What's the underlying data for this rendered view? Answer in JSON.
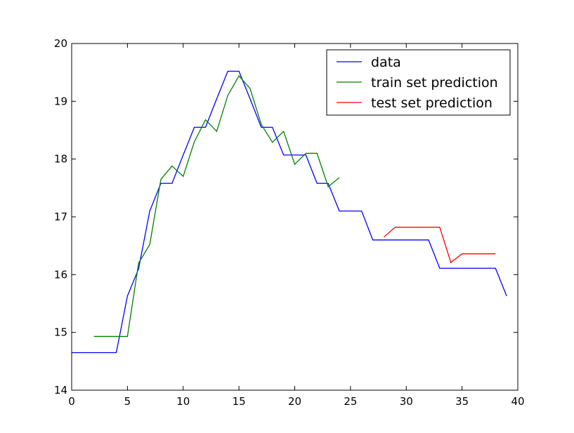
{
  "chart_data": {
    "type": "line",
    "xlim": [
      0,
      40
    ],
    "ylim": [
      14,
      20
    ],
    "x_ticks": [
      0,
      5,
      10,
      15,
      20,
      25,
      30,
      35,
      40
    ],
    "y_ticks": [
      14,
      15,
      16,
      17,
      18,
      19,
      20
    ],
    "grid": false,
    "legend_position": "top-right",
    "series": [
      {
        "name": "data",
        "color": "#0000ff",
        "x": [
          0,
          1,
          2,
          3,
          4,
          5,
          6,
          7,
          8,
          9,
          10,
          11,
          12,
          13,
          14,
          15,
          16,
          17,
          18,
          19,
          20,
          21,
          22,
          23,
          24,
          25,
          26,
          27,
          28,
          29,
          30,
          31,
          32,
          33,
          34,
          35,
          36,
          37,
          38,
          39
        ],
        "y": [
          14.65,
          14.65,
          14.65,
          14.65,
          14.65,
          15.63,
          16.1,
          17.1,
          17.58,
          17.58,
          18.07,
          18.55,
          18.55,
          19.04,
          19.52,
          19.52,
          19.04,
          18.55,
          18.55,
          18.07,
          18.07,
          18.07,
          17.58,
          17.58,
          17.1,
          17.1,
          17.1,
          16.6,
          16.6,
          16.6,
          16.6,
          16.6,
          16.6,
          16.11,
          16.11,
          16.11,
          16.11,
          16.11,
          16.11,
          15.63
        ]
      },
      {
        "name": "train set prediction",
        "color": "#008000",
        "x": [
          2,
          3,
          4,
          5,
          6,
          7,
          8,
          9,
          10,
          11,
          12,
          13,
          14,
          15,
          16,
          17,
          18,
          19,
          20,
          21,
          22,
          23,
          24
        ],
        "y": [
          14.93,
          14.93,
          14.93,
          14.93,
          16.2,
          16.52,
          17.65,
          17.88,
          17.7,
          18.3,
          18.68,
          18.48,
          19.1,
          19.44,
          19.22,
          18.6,
          18.29,
          18.48,
          17.91,
          18.1,
          18.1,
          17.52,
          17.68
        ]
      },
      {
        "name": "test set prediction",
        "color": "#ff0000",
        "x": [
          28,
          29,
          30,
          31,
          32,
          33,
          34,
          35,
          36,
          37,
          38
        ],
        "y": [
          16.65,
          16.82,
          16.82,
          16.82,
          16.82,
          16.82,
          16.21,
          16.36,
          16.36,
          16.36,
          16.36
        ]
      }
    ]
  }
}
